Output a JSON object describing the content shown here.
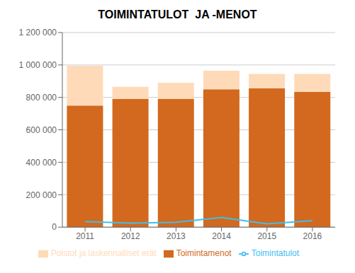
{
  "chart_data": {
    "type": "bar",
    "title": "TOIMINTATULOT  JA -MENOT",
    "categories": [
      "2011",
      "2012",
      "2013",
      "2014",
      "2015",
      "2016"
    ],
    "series": [
      {
        "name": "Toimintamenot",
        "color": "#D2691E",
        "values": [
          750000,
          790000,
          790000,
          850000,
          855000,
          835000
        ]
      },
      {
        "name": "Poistot ja laskennalliset erät",
        "color": "#FFDAB9",
        "values": [
          245000,
          75000,
          100000,
          115000,
          90000,
          110000
        ]
      },
      {
        "name": "Toimintatulot",
        "color": "#3DBFEF",
        "type": "line",
        "values": [
          35000,
          25000,
          30000,
          60000,
          20000,
          40000
        ]
      }
    ],
    "stacked": true,
    "ylim": [
      0,
      1200000
    ],
    "yticks": [
      0,
      {
        "value": 200000,
        "label": "200 000"
      },
      {
        "value": 400000,
        "label": "400 000"
      },
      {
        "value": 600000,
        "label": "600 000"
      },
      {
        "value": 800000,
        "label": "800 000"
      },
      {
        "value": 1000000,
        "label": "1 000 000"
      },
      {
        "value": 1200000,
        "label": "1 200 000"
      }
    ],
    "grid": true,
    "legend": "bottom"
  }
}
